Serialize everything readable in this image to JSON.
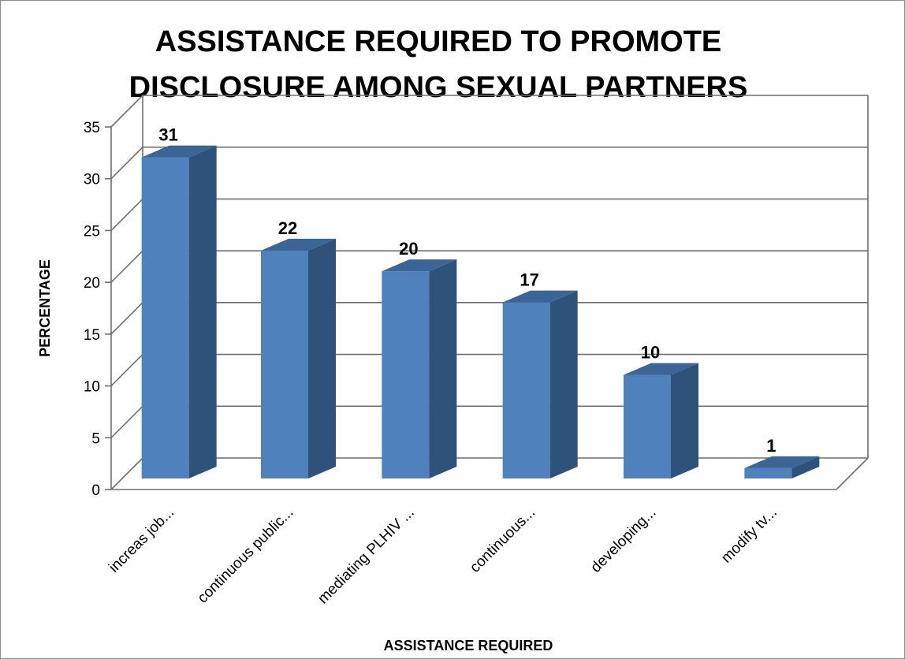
{
  "chart_data": {
    "type": "bar",
    "title_lines": [
      "ASSISTANCE REQUIRED TO PROMOTE",
      "DISCLOSURE AMONG SEXUAL PARTNERS"
    ],
    "xlabel": "ASSISTANCE REQUIRED",
    "ylabel": "PERCENTAGE",
    "categories": [
      "increas job...",
      "continuous public...",
      "mediating PLHIV ...",
      "continuous...",
      "developing...",
      "modify tv..."
    ],
    "values": [
      31,
      22,
      20,
      17,
      10,
      1
    ],
    "data_labels": [
      "31",
      "22",
      "20",
      "17",
      "10",
      "1"
    ],
    "ylim": [
      0,
      35
    ],
    "yticks": [
      "0",
      "5",
      "10",
      "15",
      "20",
      "25",
      "30",
      "35"
    ],
    "grid": true,
    "legend": "none",
    "style": "3d-clustered-column",
    "bar_color": "#4f81bd",
    "bar_side_color": "#2f527a",
    "bar_top_color": "#3b6597"
  }
}
